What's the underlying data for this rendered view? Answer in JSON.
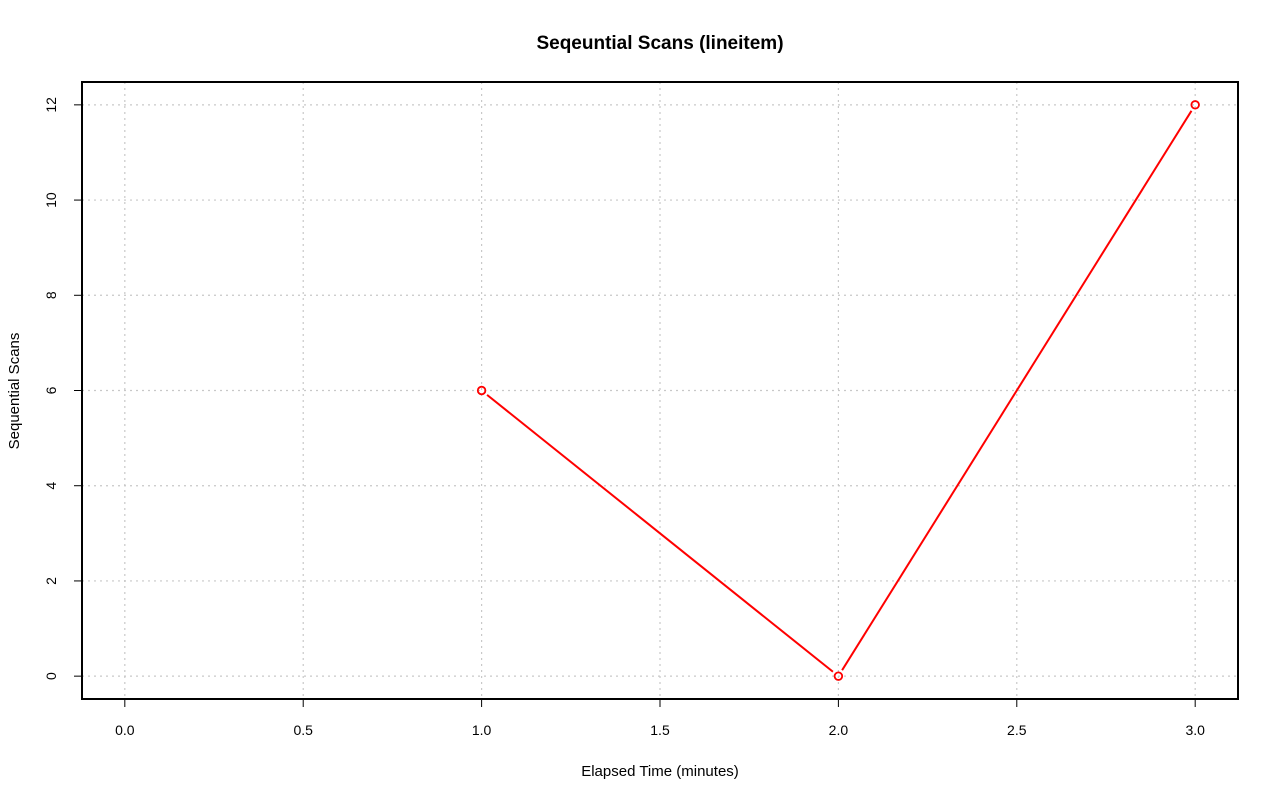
{
  "chart_data": {
    "type": "line",
    "title": "Seqeuntial Scans (lineitem)",
    "xlabel": "Elapsed Time (minutes)",
    "ylabel": "Sequential Scans",
    "xlim": [
      -0.12,
      3.12
    ],
    "ylim": [
      -0.48,
      12.48
    ],
    "x_ticks": [
      0,
      0.5,
      1,
      1.5,
      2,
      2.5,
      3
    ],
    "x_tick_labels": [
      "0.0",
      "0.5",
      "1.0",
      "1.5",
      "2.0",
      "2.5",
      "3.0"
    ],
    "y_ticks": [
      0,
      2,
      4,
      6,
      8,
      10,
      12
    ],
    "y_tick_labels": [
      "0",
      "2",
      "4",
      "6",
      "8",
      "10",
      "12"
    ],
    "grid": true,
    "series": [
      {
        "color": "#ff0000",
        "marker": "open-circle",
        "x": [
          1,
          2,
          3
        ],
        "y": [
          6,
          0,
          12
        ]
      }
    ]
  }
}
